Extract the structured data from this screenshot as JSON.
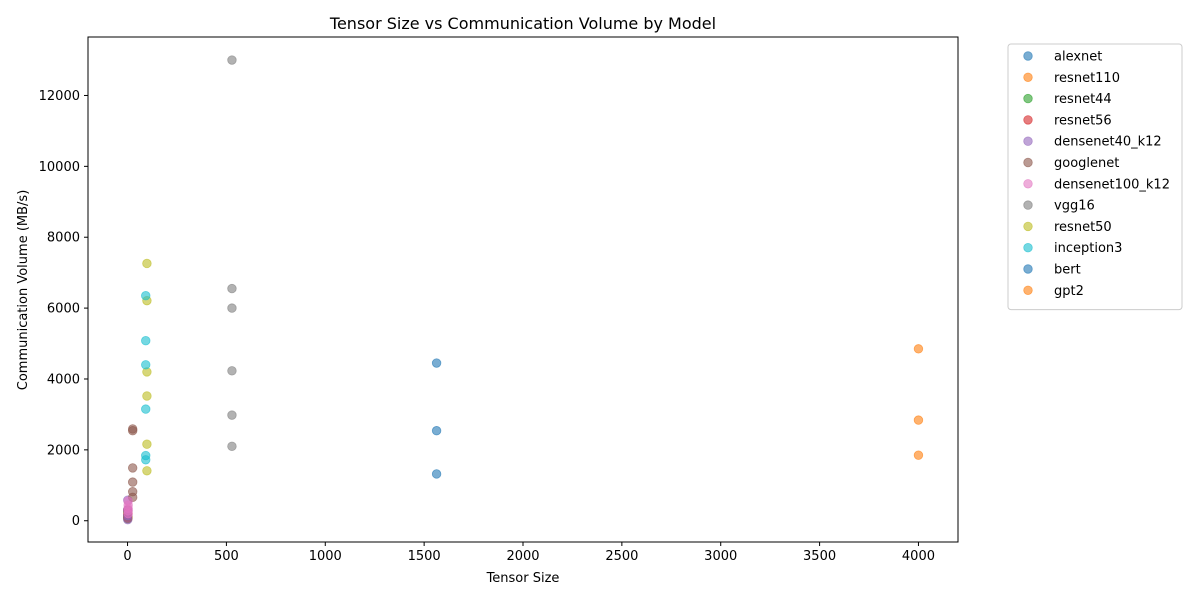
{
  "chart_data": {
    "type": "scatter",
    "title": "Tensor Size vs Communication Volume by Model",
    "xlabel": "Tensor Size",
    "ylabel": "Communication Volume (MB/s)",
    "xlim": [
      -200,
      4200
    ],
    "ylim": [
      -600,
      13650
    ],
    "xticks": [
      0,
      500,
      1000,
      1500,
      2000,
      2500,
      3000,
      3500,
      4000
    ],
    "yticks": [
      0,
      2000,
      4000,
      6000,
      8000,
      10000,
      12000
    ],
    "grid": false,
    "legend_position": "outside-top-right",
    "point_opacity": 0.6,
    "series": [
      {
        "name": "alexnet",
        "color": "#1f77b4",
        "points": [
          [
            1.0,
            300
          ],
          [
            1.0,
            150
          ]
        ]
      },
      {
        "name": "resnet110",
        "color": "#ff7f0e",
        "points": [
          [
            1.7,
            200
          ],
          [
            1.7,
            120
          ],
          [
            1.7,
            60
          ]
        ]
      },
      {
        "name": "resnet44",
        "color": "#2ca02c",
        "points": [
          [
            0.7,
            250
          ],
          [
            0.7,
            130
          ],
          [
            0.7,
            60
          ]
        ]
      },
      {
        "name": "resnet56",
        "color": "#d62728",
        "points": [
          [
            0.9,
            300
          ],
          [
            0.9,
            180
          ],
          [
            0.9,
            80
          ]
        ]
      },
      {
        "name": "densenet40_k12",
        "color": "#9467bd",
        "points": [
          [
            1.0,
            580
          ],
          [
            1.0,
            300
          ],
          [
            1.0,
            150
          ],
          [
            1.0,
            30
          ]
        ]
      },
      {
        "name": "googlenet",
        "color": "#8c564b",
        "points": [
          [
            26,
            2590
          ],
          [
            26,
            2540
          ],
          [
            26,
            1490
          ],
          [
            26,
            1090
          ],
          [
            26,
            820
          ],
          [
            26,
            660
          ]
        ]
      },
      {
        "name": "densenet100_k12",
        "color": "#e377c2",
        "points": [
          [
            3.0,
            550
          ],
          [
            3.0,
            440
          ],
          [
            3.0,
            350
          ],
          [
            3.0,
            280
          ],
          [
            3.0,
            200
          ]
        ]
      },
      {
        "name": "vgg16",
        "color": "#7f7f7f",
        "points": [
          [
            528,
            13000
          ],
          [
            528,
            6550
          ],
          [
            528,
            6000
          ],
          [
            528,
            4230
          ],
          [
            528,
            2980
          ],
          [
            528,
            2100
          ]
        ]
      },
      {
        "name": "resnet50",
        "color": "#bcbd22",
        "points": [
          [
            98,
            7260
          ],
          [
            98,
            6210
          ],
          [
            98,
            4200
          ],
          [
            98,
            3520
          ],
          [
            98,
            2160
          ],
          [
            98,
            1410
          ]
        ]
      },
      {
        "name": "inception3",
        "color": "#17becf",
        "points": [
          [
            92,
            6350
          ],
          [
            92,
            5080
          ],
          [
            92,
            4400
          ],
          [
            92,
            3150
          ],
          [
            92,
            1840
          ],
          [
            92,
            1720
          ]
        ]
      },
      {
        "name": "bert",
        "color": "#1f77b4",
        "points": [
          [
            1563,
            4450
          ],
          [
            1563,
            2540
          ],
          [
            1563,
            1320
          ]
        ]
      },
      {
        "name": "gpt2",
        "color": "#ff7f0e",
        "points": [
          [
            4000,
            4850
          ],
          [
            4000,
            2840
          ],
          [
            4000,
            1850
          ]
        ]
      }
    ]
  }
}
